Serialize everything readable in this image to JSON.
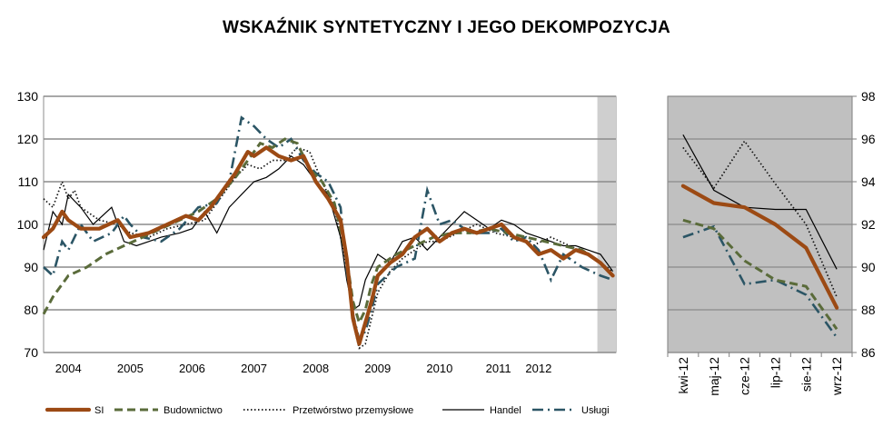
{
  "title": "WSKAŹNIK SYNTETYCZNY I JEGO DEKOMPOZYCJA",
  "colors": {
    "SI": "#9c4a14",
    "Budownictwo": "#5a6b3a",
    "Przetworstwo": "#111111",
    "Handel": "#000000",
    "Uslugi": "#2b5565",
    "grid": "#8c8c8c",
    "right_background": "#c0c0c0",
    "shade": "#cfcfcf"
  },
  "chart_data": [
    {
      "type": "line",
      "ylim": [
        70,
        130
      ],
      "yticks": [
        70,
        80,
        90,
        100,
        110,
        120,
        130
      ],
      "xlim": [
        2003.6,
        2012.85
      ],
      "year_labels": [
        "2004",
        "2005",
        "2006",
        "2007",
        "2008",
        "2009",
        "2010",
        "2011",
        "2012"
      ],
      "year_label_x": [
        2004.0,
        2005.0,
        2006.0,
        2007.0,
        2008.0,
        2009.0,
        2010.0,
        2010.95,
        2011.6
      ],
      "shaded_from": 2012.55,
      "grid": true,
      "series": [
        {
          "name": "SI",
          "style": "solid-thick",
          "x": [
            2003.6,
            2003.75,
            2003.9,
            2004.0,
            2004.2,
            2004.5,
            2004.8,
            2004.9,
            2005.0,
            2005.3,
            2005.6,
            2005.9,
            2006.1,
            2006.3,
            2006.5,
            2006.7,
            2006.9,
            2007.0,
            2007.2,
            2007.4,
            2007.6,
            2007.8,
            2008.0,
            2008.2,
            2008.4,
            2008.5,
            2008.6,
            2008.7,
            2008.8,
            2008.9,
            2009.0,
            2009.2,
            2009.4,
            2009.6,
            2009.8,
            2010.0,
            2010.2,
            2010.4,
            2010.6,
            2010.8,
            2011.0,
            2011.2,
            2011.4,
            2011.6,
            2011.8,
            2012.0,
            2012.2,
            2012.4,
            2012.6,
            2012.8
          ],
          "y": [
            97,
            99,
            103,
            101,
            99,
            99,
            101,
            99,
            97,
            98,
            100,
            102,
            101,
            104,
            108,
            112,
            117,
            116,
            118,
            116,
            115,
            116,
            110,
            106,
            101,
            92,
            78,
            72,
            77,
            82,
            88,
            91,
            93,
            97,
            99,
            96,
            98,
            99,
            98,
            99,
            100,
            97,
            96,
            93,
            94,
            92,
            94,
            93,
            91,
            88
          ]
        },
        {
          "name": "Budownictwo",
          "style": "dashed",
          "x": [
            2003.6,
            2003.75,
            2003.9,
            2004.0,
            2004.3,
            2004.6,
            2004.9,
            2005.2,
            2005.5,
            2005.8,
            2006.1,
            2006.4,
            2006.7,
            2006.9,
            2007.1,
            2007.3,
            2007.5,
            2007.7,
            2007.9,
            2008.1,
            2008.3,
            2008.5,
            2008.6,
            2008.7,
            2008.8,
            2008.9,
            2009.0,
            2009.3,
            2009.6,
            2009.9,
            2010.2,
            2010.5,
            2010.8,
            2011.1,
            2011.4,
            2011.7,
            2012.0,
            2012.3,
            2012.6,
            2012.8
          ],
          "y": [
            79,
            83,
            86,
            88,
            90,
            93,
            95,
            97,
            99,
            101,
            103,
            106,
            111,
            115,
            119,
            118,
            120,
            119,
            113,
            110,
            105,
            92,
            82,
            77,
            80,
            86,
            90,
            93,
            95,
            97,
            98,
            98,
            99,
            98,
            97,
            96,
            95,
            94,
            91,
            88
          ]
        },
        {
          "name": "Przetwórstwo przemysłowe",
          "style": "dotted",
          "x": [
            2003.6,
            2003.75,
            2003.9,
            2004.0,
            2004.1,
            2004.2,
            2004.5,
            2004.8,
            2005.0,
            2005.3,
            2005.6,
            2005.9,
            2006.2,
            2006.5,
            2006.7,
            2006.9,
            2007.1,
            2007.3,
            2007.5,
            2007.7,
            2007.9,
            2008.1,
            2008.3,
            2008.5,
            2008.6,
            2008.7,
            2008.8,
            2008.9,
            2009.0,
            2009.2,
            2009.4,
            2009.6,
            2009.8,
            2010.0,
            2010.3,
            2010.6,
            2010.9,
            2011.2,
            2011.5,
            2011.8,
            2012.1,
            2012.4,
            2012.6,
            2012.8
          ],
          "y": [
            106,
            104,
            110,
            106,
            108,
            104,
            101,
            100,
            98,
            97,
            99,
            100,
            101,
            107,
            111,
            114,
            113,
            115,
            115,
            118,
            117,
            110,
            104,
            90,
            77,
            71,
            72,
            78,
            84,
            89,
            92,
            94,
            96,
            96,
            98,
            100,
            98,
            97,
            95,
            97,
            95,
            93,
            91,
            89
          ]
        },
        {
          "name": "Handel",
          "style": "solid-thin",
          "x": [
            2003.6,
            2003.75,
            2003.9,
            2004.0,
            2004.2,
            2004.4,
            2004.7,
            2004.9,
            2005.1,
            2005.3,
            2005.5,
            2005.8,
            2006.0,
            2006.2,
            2006.4,
            2006.6,
            2006.8,
            2007.0,
            2007.2,
            2007.4,
            2007.6,
            2007.8,
            2008.0,
            2008.2,
            2008.4,
            2008.5,
            2008.6,
            2008.7,
            2008.8,
            2009.0,
            2009.2,
            2009.4,
            2009.6,
            2009.8,
            2010.0,
            2010.2,
            2010.4,
            2010.6,
            2010.8,
            2011.0,
            2011.2,
            2011.4,
            2011.6,
            2011.8,
            2012.0,
            2012.2,
            2012.4,
            2012.6,
            2012.8
          ],
          "y": [
            94,
            103,
            100,
            107,
            104,
            100,
            104,
            96,
            95,
            96,
            97,
            98,
            99,
            103,
            98,
            104,
            107,
            110,
            111,
            113,
            116,
            114,
            110,
            107,
            97,
            87,
            80,
            81,
            87,
            93,
            91,
            96,
            97,
            94,
            97,
            100,
            103,
            101,
            99,
            101,
            100,
            98,
            97,
            96,
            95,
            95,
            94,
            93,
            89
          ]
        },
        {
          "name": "Usługi",
          "style": "dash-dot",
          "x": [
            2003.6,
            2003.75,
            2003.9,
            2004.0,
            2004.2,
            2004.4,
            2004.7,
            2004.9,
            2005.0,
            2005.2,
            2005.5,
            2005.8,
            2006.1,
            2006.4,
            2006.6,
            2006.8,
            2007.0,
            2007.2,
            2007.4,
            2007.6,
            2007.8,
            2008.0,
            2008.2,
            2008.4,
            2008.5,
            2008.6,
            2008.7,
            2008.8,
            2008.9,
            2009.0,
            2009.3,
            2009.6,
            2009.8,
            2010.0,
            2010.2,
            2010.5,
            2010.8,
            2011.0,
            2011.2,
            2011.4,
            2011.6,
            2011.8,
            2012.0,
            2012.3,
            2012.6,
            2012.8
          ],
          "y": [
            90,
            88,
            96,
            94,
            100,
            96,
            98,
            102,
            100,
            97,
            96,
            99,
            104,
            105,
            110,
            125,
            123,
            120,
            118,
            120,
            115,
            112,
            110,
            104,
            89,
            79,
            73,
            75,
            80,
            86,
            90,
            92,
            108,
            100,
            101,
            98,
            98,
            99,
            96,
            97,
            94,
            87,
            93,
            90,
            88,
            87
          ]
        }
      ]
    },
    {
      "type": "line",
      "categories": [
        "kwi-12",
        "maj-12",
        "cze-12",
        "lip-12",
        "sie-12",
        "wrz-12"
      ],
      "ylim": [
        86,
        98
      ],
      "yticks": [
        86,
        88,
        90,
        92,
        94,
        96,
        98
      ],
      "grid": true,
      "series": [
        {
          "name": "SI",
          "style": "solid-thick",
          "values": [
            93.8,
            93.0,
            92.8,
            92.0,
            90.9,
            88.1
          ]
        },
        {
          "name": "Budownictwo",
          "style": "dashed",
          "values": [
            92.2,
            91.8,
            90.3,
            89.4,
            89.1,
            87.1
          ]
        },
        {
          "name": "Przetwórstwo przemysłowe",
          "style": "dotted",
          "values": [
            95.6,
            93.7,
            95.9,
            93.9,
            92.0,
            88.6
          ]
        },
        {
          "name": "Handel",
          "style": "solid-thin",
          "values": [
            96.2,
            93.6,
            92.8,
            92.7,
            92.7,
            89.9
          ]
        },
        {
          "name": "Usługi",
          "style": "dash-dot",
          "values": [
            91.4,
            91.9,
            89.2,
            89.4,
            88.7,
            86.7
          ]
        }
      ]
    }
  ],
  "legend": [
    {
      "label": "SI",
      "style": "solid-thick"
    },
    {
      "label": "Budownictwo",
      "style": "dashed"
    },
    {
      "label": "Przetwórstwo przemysłowe",
      "style": "dotted"
    },
    {
      "label": "Handel",
      "style": "solid-thin"
    },
    {
      "label": "Usługi",
      "style": "dash-dot"
    }
  ]
}
